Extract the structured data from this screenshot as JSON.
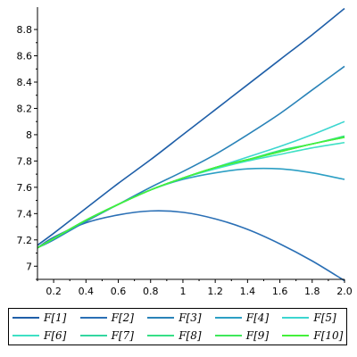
{
  "chart_data": {
    "type": "line",
    "title": "",
    "xlabel": "",
    "ylabel": "",
    "xlim": [
      0.1,
      2.0
    ],
    "ylim": [
      6.9,
      8.97
    ],
    "x_ticks": [
      0.2,
      0.4,
      0.6,
      0.8,
      1.0,
      1.2,
      1.4,
      1.6,
      1.8,
      2.0
    ],
    "x_tick_labels": [
      "0.2",
      "0.4",
      "0.6",
      "0.8",
      "1",
      "1.2",
      "1.4",
      "1.6",
      "1.8",
      "2.0"
    ],
    "y_ticks": [
      7.0,
      7.2,
      7.4,
      7.6,
      7.8,
      8.0,
      8.2,
      8.4,
      8.6,
      8.8
    ],
    "y_tick_labels": [
      "7",
      "7.2",
      "7.4",
      "7.6",
      "7.8",
      "8",
      "8.2",
      "8.4",
      "8.6",
      "8.8"
    ],
    "grid": false,
    "legend_position": "bottom",
    "x": [
      0.1,
      0.2,
      0.4,
      0.6,
      0.8,
      1.0,
      1.2,
      1.4,
      1.6,
      1.8,
      2.0
    ],
    "series": [
      {
        "name": "F[1]",
        "color": "#1f5fa8",
        "values": [
          7.16,
          7.25,
          7.44,
          7.63,
          7.81,
          8.0,
          8.19,
          8.38,
          8.57,
          8.76,
          8.96
        ]
      },
      {
        "name": "F[2]",
        "color": "#2a6fb5",
        "values": [
          7.14,
          7.22,
          7.33,
          7.39,
          7.42,
          7.41,
          7.36,
          7.28,
          7.17,
          7.04,
          6.89
        ]
      },
      {
        "name": "F[3]",
        "color": "#2a83b8",
        "values": [
          7.14,
          7.2,
          7.34,
          7.47,
          7.6,
          7.72,
          7.85,
          8.0,
          8.16,
          8.34,
          8.52
        ]
      },
      {
        "name": "F[4]",
        "color": "#2c9fc4",
        "values": [
          7.14,
          7.21,
          7.35,
          7.47,
          7.58,
          7.66,
          7.71,
          7.74,
          7.74,
          7.71,
          7.66
        ]
      },
      {
        "name": "F[5]",
        "color": "#3dd6d0",
        "values": [
          7.14,
          7.21,
          7.35,
          7.47,
          7.58,
          7.67,
          7.75,
          7.83,
          7.91,
          8.0,
          8.1
        ]
      },
      {
        "name": "F[6]",
        "color": "#3ee0c4",
        "values": [
          7.14,
          7.21,
          7.35,
          7.47,
          7.58,
          7.67,
          7.74,
          7.8,
          7.85,
          7.9,
          7.94
        ]
      },
      {
        "name": "F[7]",
        "color": "#33d6a0",
        "values": [
          7.14,
          7.21,
          7.35,
          7.47,
          7.58,
          7.67,
          7.75,
          7.81,
          7.87,
          7.93,
          7.98
        ]
      },
      {
        "name": "F[8]",
        "color": "#36df86",
        "values": [
          7.14,
          7.21,
          7.35,
          7.47,
          7.58,
          7.67,
          7.75,
          7.81,
          7.88,
          7.93,
          7.99
        ]
      },
      {
        "name": "F[9]",
        "color": "#3ee85a",
        "values": [
          7.14,
          7.21,
          7.35,
          7.47,
          7.58,
          7.67,
          7.75,
          7.81,
          7.87,
          7.93,
          7.98
        ]
      },
      {
        "name": "F[10]",
        "color": "#44f03a",
        "values": [
          7.14,
          7.21,
          7.35,
          7.47,
          7.58,
          7.67,
          7.75,
          7.81,
          7.87,
          7.93,
          7.98
        ]
      }
    ]
  }
}
